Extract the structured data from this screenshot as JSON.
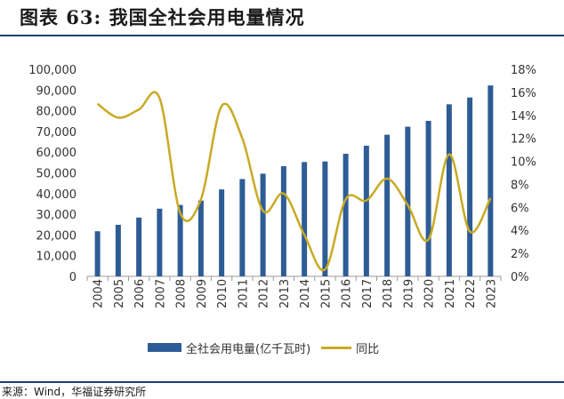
{
  "title": "图表 63:  我国全社会用电量情况",
  "source": "来源：Wind，华福证券研究所",
  "colors": {
    "bar": "#2e5c96",
    "line": "#c8aa23",
    "rule": "#1f3d6e"
  },
  "chart_data": {
    "type": "bar",
    "categories": [
      "2004",
      "2005",
      "2006",
      "2007",
      "2008",
      "2009",
      "2010",
      "2011",
      "2012",
      "2013",
      "2014",
      "2015",
      "2016",
      "2017",
      "2018",
      "2019",
      "2020",
      "2021",
      "2022",
      "2023"
    ],
    "series": [
      {
        "name": "全社会用电量(亿千瓦时)",
        "type": "bar",
        "axis": "left",
        "values": [
          21800,
          24900,
          28400,
          32700,
          34500,
          36600,
          42000,
          47000,
          49600,
          53200,
          55200,
          55500,
          59200,
          63100,
          68400,
          72300,
          75100,
          83100,
          86400,
          92200
        ]
      },
      {
        "name": "同比",
        "type": "line",
        "axis": "right",
        "values": [
          15.0,
          13.8,
          14.5,
          15.5,
          5.5,
          6.7,
          14.8,
          12.0,
          5.7,
          7.2,
          3.6,
          0.6,
          6.7,
          6.6,
          8.5,
          6.2,
          3.2,
          10.6,
          3.9,
          6.8
        ]
      }
    ],
    "y_left": {
      "min": 0,
      "max": 100000,
      "step": 10000,
      "tick_labels": [
        "0",
        "10,000",
        "20,000",
        "30,000",
        "40,000",
        "50,000",
        "60,000",
        "70,000",
        "80,000",
        "90,000",
        "100,000"
      ]
    },
    "y_right": {
      "min": 0,
      "max": 18,
      "step": 2,
      "tick_labels": [
        "0%",
        "2%",
        "4%",
        "6%",
        "8%",
        "10%",
        "12%",
        "14%",
        "16%",
        "18%"
      ]
    },
    "legend": {
      "position": "bottom"
    },
    "grid": false
  }
}
